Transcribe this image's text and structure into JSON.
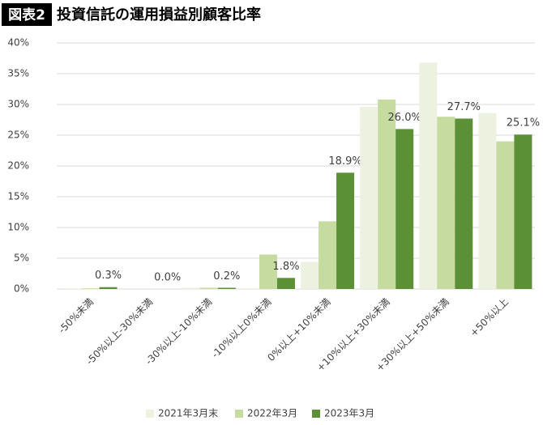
{
  "chart_data": {
    "type": "bar",
    "badge": "図表2",
    "title": "投資信託の運用損益別顧客比率",
    "categories": [
      "-50%未満",
      "-50%以上-30%未満",
      "-30%以上-10%未満",
      "-10%以上0%未満",
      "0%以上+10%未満",
      "+10%以上+30%未満",
      "+30%以上+50%未満",
      "+50%以上"
    ],
    "series": [
      {
        "name": "2021年3月末",
        "color": "#edf1df",
        "values": [
          0.1,
          0.0,
          0.2,
          0.1,
          4.4,
          29.6,
          36.8,
          28.6
        ]
      },
      {
        "name": "2022年3月",
        "color": "#c5dba0",
        "values": [
          0.1,
          0.0,
          0.2,
          5.6,
          11.0,
          30.8,
          28.0,
          24.0
        ]
      },
      {
        "name": "2023年3月",
        "color": "#5b9036",
        "values": [
          0.3,
          0.0,
          0.2,
          1.8,
          18.9,
          26.0,
          27.7,
          25.1
        ],
        "value_labels": [
          "0.3%",
          "0.0%",
          "0.2%",
          "1.8%",
          "18.9%",
          "26.0%",
          "27.7%",
          "25.1%"
        ]
      }
    ],
    "ylim": [
      0,
      40
    ],
    "yticks": [
      {
        "value": 0,
        "label": "0%"
      },
      {
        "value": 5,
        "label": "5%"
      },
      {
        "value": 10,
        "label": "10%"
      },
      {
        "value": 15,
        "label": "15%"
      },
      {
        "value": 20,
        "label": "20%"
      },
      {
        "value": 25,
        "label": "25%"
      },
      {
        "value": 30,
        "label": "30%"
      },
      {
        "value": 35,
        "label": "35%"
      },
      {
        "value": 40,
        "label": "40%"
      }
    ],
    "grid": true,
    "legend": "bottom"
  }
}
